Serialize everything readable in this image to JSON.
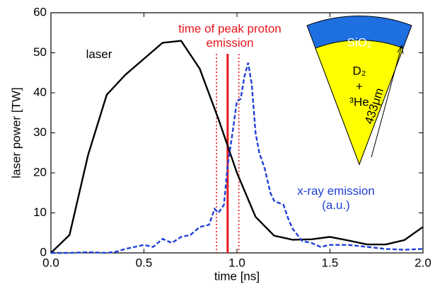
{
  "chart_data": {
    "type": "line",
    "xlabel": "time [ns]",
    "ylabel": "laser power [TW]",
    "xlim": [
      0,
      2.0
    ],
    "ylim": [
      0,
      60
    ],
    "xticks": [
      {
        "value": 0,
        "label": "0.0"
      },
      {
        "value": 0.5,
        "label": "0.5"
      },
      {
        "value": 1.0,
        "label": "1.0"
      },
      {
        "value": 1.5,
        "label": "1.5"
      },
      {
        "value": 2.0,
        "label": "2.0"
      }
    ],
    "yticks": [
      0,
      10,
      20,
      30,
      40,
      50,
      60
    ],
    "series": [
      {
        "name": "laser",
        "color": "#000000",
        "linestyle": "solid",
        "x": [
          0,
          0.1,
          0.2,
          0.3,
          0.4,
          0.5,
          0.6,
          0.7,
          0.8,
          0.9,
          1.0,
          1.1,
          1.2,
          1.3,
          1.4,
          1.5,
          1.6,
          1.7,
          1.8,
          1.9,
          2.0
        ],
        "values": [
          0,
          4.5,
          24.5,
          39.5,
          44.5,
          48.5,
          52.5,
          53,
          46,
          33.5,
          20,
          9,
          4.3,
          3.3,
          3.4,
          4,
          3.1,
          2.1,
          2.1,
          3.2,
          6.5
        ]
      },
      {
        "name": "x-ray emission\n(a.u.)",
        "color": "#1f3fd6",
        "linestyle": "dashed",
        "x": [
          0,
          0.1,
          0.2,
          0.3,
          0.35,
          0.4,
          0.45,
          0.5,
          0.55,
          0.6,
          0.65,
          0.7,
          0.75,
          0.8,
          0.85,
          0.88,
          0.9,
          0.93,
          0.95,
          0.97,
          1.0,
          1.02,
          1.04,
          1.06,
          1.08,
          1.1,
          1.12,
          1.15,
          1.18,
          1.2,
          1.25,
          1.28,
          1.3,
          1.35,
          1.4,
          1.45,
          1.5,
          1.6,
          1.7,
          1.8,
          1.9,
          2.0
        ],
        "values": [
          0,
          0,
          0.2,
          0,
          0.3,
          1,
          1.5,
          2,
          1.5,
          3.5,
          2.5,
          4,
          4.5,
          6.5,
          7,
          11,
          10,
          12,
          22,
          28,
          38,
          38.5,
          44,
          47.5,
          42,
          30,
          25,
          21,
          15,
          13,
          12,
          8,
          6,
          3,
          2.5,
          1.5,
          2,
          2,
          1.5,
          1,
          0.8,
          1
        ]
      }
    ],
    "vlines": [
      {
        "x": 0.89,
        "linestyle": "dotted"
      },
      {
        "x": 0.95,
        "linestyle": "solid"
      },
      {
        "x": 1.01,
        "linestyle": "dotted"
      }
    ],
    "vline_color": "#e8161b",
    "annotation": "time of peak proton\nemission",
    "inset": {
      "shell": "SiO₂",
      "fuel": [
        "D₂",
        "+",
        "³He"
      ],
      "size": "433μm"
    }
  }
}
